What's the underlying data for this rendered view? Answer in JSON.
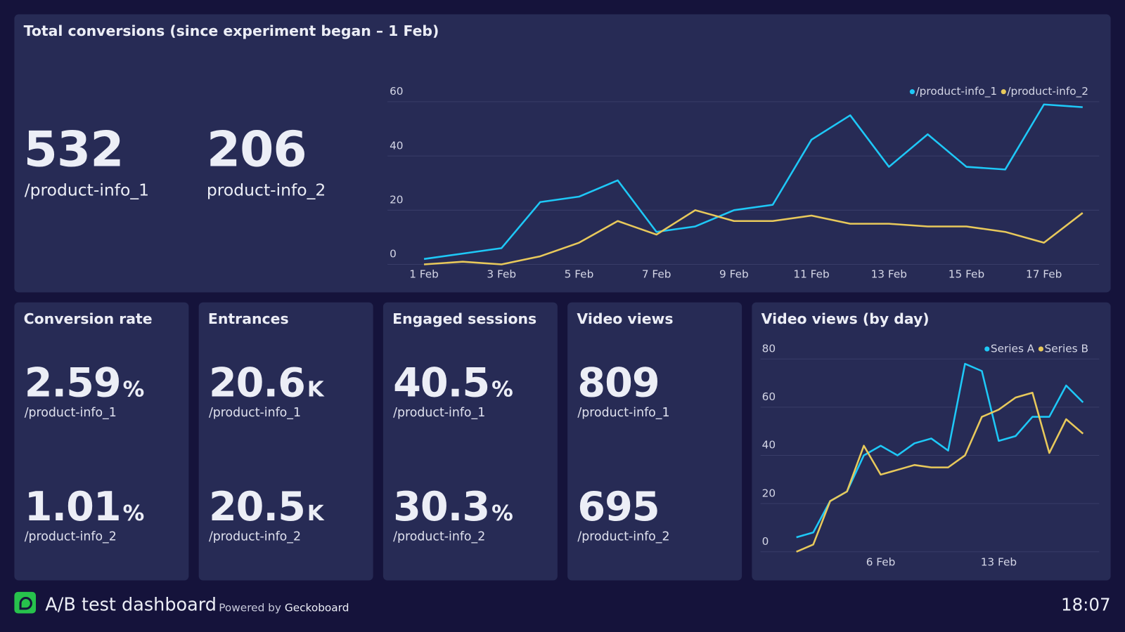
{
  "chart_data": [
    {
      "type": "line",
      "title": "Total conversions (since experiment began – 1 Feb)",
      "categories": [
        "1 Feb",
        null,
        "3 Feb",
        null,
        "5 Feb",
        null,
        "7 Feb",
        null,
        "9 Feb",
        null,
        "11 Feb",
        null,
        "13 Feb",
        null,
        "15 Feb",
        null,
        "17 Feb",
        null
      ],
      "series": [
        {
          "name": "/product-info_1",
          "color": "#1ec8f7",
          "values": [
            2,
            4,
            6,
            23,
            25,
            31,
            12,
            14,
            20,
            22,
            46,
            55,
            36,
            48,
            36,
            35,
            59,
            58
          ]
        },
        {
          "name": "/product-info_2",
          "color": "#e8c95b",
          "values": [
            0,
            1,
            0,
            3,
            8,
            16,
            11,
            20,
            16,
            16,
            18,
            15,
            15,
            14,
            14,
            12,
            8,
            19
          ]
        }
      ],
      "ylim": [
        0,
        60
      ],
      "yticks": [
        0,
        20,
        40,
        60
      ],
      "grid": true,
      "legend": "top-right"
    },
    {
      "type": "line",
      "title": "Video views (by day)",
      "categories": [
        null,
        null,
        null,
        null,
        null,
        "6 Feb",
        null,
        null,
        null,
        null,
        null,
        null,
        "13 Feb",
        null,
        null,
        null,
        null,
        null
      ],
      "series": [
        {
          "name": "Series A",
          "color": "#1ec8f7",
          "values": [
            6,
            8,
            21,
            25,
            40,
            44,
            40,
            45,
            47,
            42,
            78,
            75,
            46,
            48,
            56,
            56,
            69,
            62
          ]
        },
        {
          "name": "Series B",
          "color": "#e8c95b",
          "values": [
            0,
            3,
            21,
            25,
            44,
            32,
            34,
            36,
            35,
            35,
            40,
            56,
            59,
            64,
            66,
            41,
            55,
            49
          ]
        }
      ],
      "ylim": [
        0,
        80
      ],
      "yticks": [
        0,
        20,
        40,
        60,
        80
      ],
      "grid": true,
      "legend": "top-right"
    }
  ],
  "totals": [
    {
      "value": 532,
      "label": "/product-info_1"
    },
    {
      "value": 206,
      "label": "product-info_2"
    }
  ],
  "tiles": [
    {
      "title": "Conversion rate",
      "items": [
        {
          "value": 2.59,
          "unit": "%",
          "label": "/product-info_1"
        },
        {
          "value": 1.01,
          "unit": "%",
          "label": "/product-info_2"
        }
      ]
    },
    {
      "title": "Entrances",
      "items": [
        {
          "value": 20.6,
          "unit": "K",
          "label": "/product-info_1"
        },
        {
          "value": 20.5,
          "unit": "K",
          "label": "/product-info_2"
        }
      ]
    },
    {
      "title": "Engaged sessions",
      "items": [
        {
          "value": 40.5,
          "unit": "%",
          "label": "/product-info_1"
        },
        {
          "value": 30.3,
          "unit": "%",
          "label": "/product-info_2"
        }
      ]
    },
    {
      "title": "Video views",
      "items": [
        {
          "value": 809,
          "label": "/product-info_1"
        },
        {
          "value": 695,
          "label": "/product-info_2"
        }
      ]
    }
  ],
  "footer": {
    "title": "A/B test dashboard",
    "powered_by": "Powered by",
    "brand": "Geckoboard",
    "time": "18:07"
  }
}
